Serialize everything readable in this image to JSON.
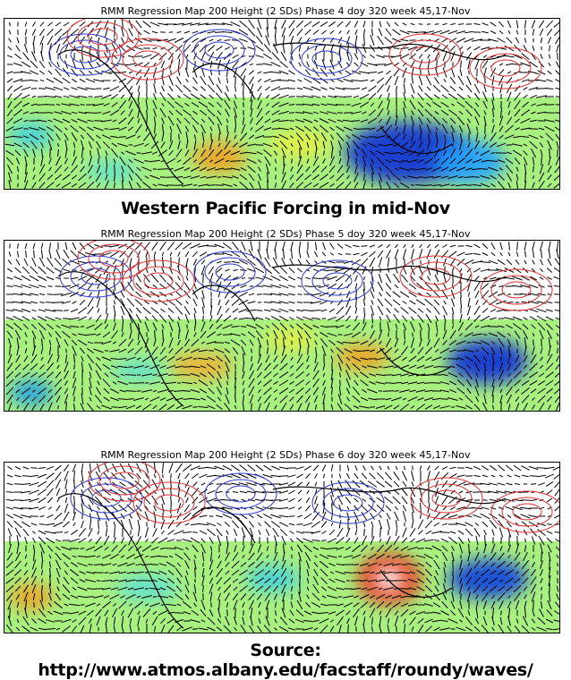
{
  "panels": [
    {
      "title": "RMM Regression Map 200 Height (2 SDs) Phase 4 doy 320 week 45,17-Nov",
      "phase": 4
    },
    {
      "title": "RMM Regression Map 200 Height (2 SDs) Phase 5 doy 320 week 45,17-Nov",
      "phase": 5
    },
    {
      "title": "RMM Regression Map 200 Height (2 SDs) Phase 6 doy 320 week 45,17-Nov",
      "phase": 6
    }
  ],
  "heading": "Western Pacific Forcing in mid-Nov",
  "source": "Source: http://www.atmos.albany.edu/facstaff/roundy/waves/",
  "colors": {
    "contour_positive": "#e03030",
    "contour_negative": "#2a3ad0",
    "anomaly_warm": "#f08a10",
    "anomaly_cold": "#1040e0",
    "anomaly_mid": "#a8f080"
  }
}
